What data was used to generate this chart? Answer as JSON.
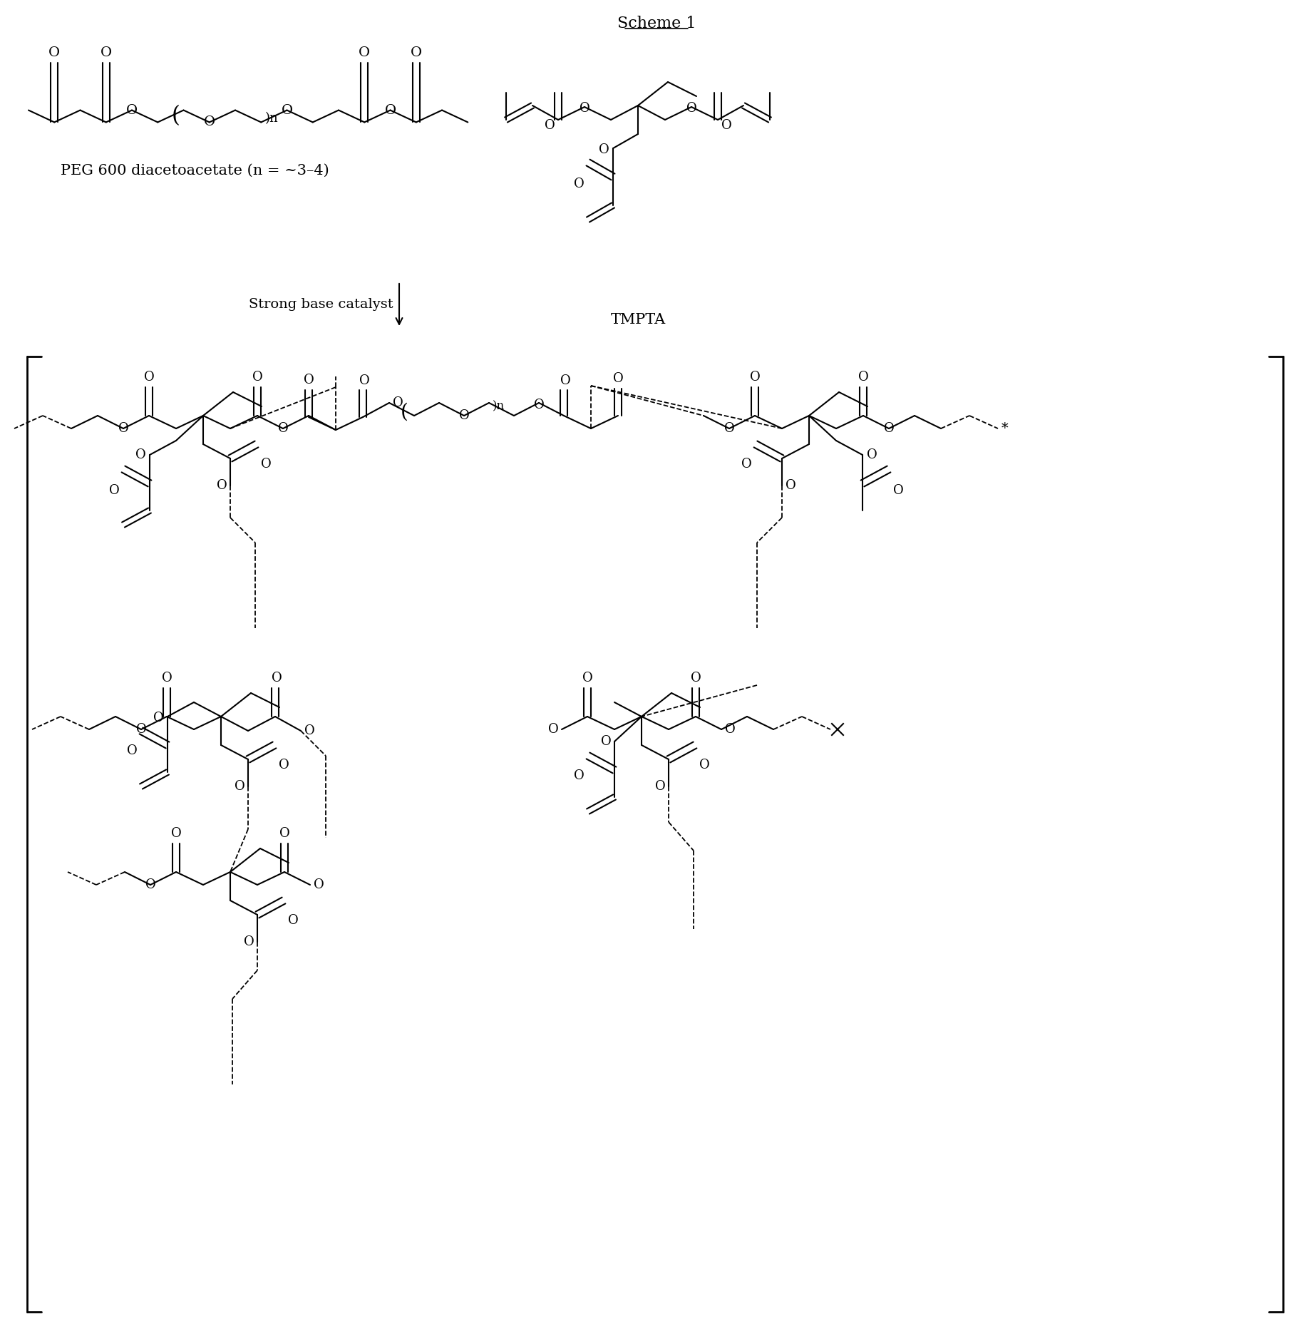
{
  "title": "Scheme 1",
  "label_peg": "PEG 600 diacetoacetate (n = ~3–4)",
  "label_tmpta": "TMPTA",
  "label_arrow": "Strong base catalyst",
  "fig_width": 18.42,
  "fig_height": 18.64,
  "dpi": 100
}
